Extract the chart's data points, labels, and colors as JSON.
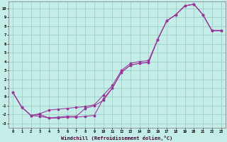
{
  "bg_color": "#c5ede8",
  "grid_color": "#9ecec8",
  "line_color": "#993399",
  "xlim": [
    -0.5,
    23.5
  ],
  "ylim": [
    -3.5,
    10.8
  ],
  "xticks": [
    0,
    1,
    2,
    3,
    4,
    5,
    6,
    7,
    8,
    9,
    10,
    11,
    12,
    13,
    14,
    15,
    16,
    17,
    18,
    19,
    20,
    21,
    22,
    23
  ],
  "yticks": [
    -3,
    -2,
    -1,
    0,
    1,
    2,
    3,
    4,
    5,
    6,
    7,
    8,
    9,
    10
  ],
  "xlabel": "Windchill (Refroidissement éolien,°C)",
  "line1_x": [
    0,
    1,
    2,
    3,
    4,
    5,
    6,
    7,
    8,
    9,
    10,
    11,
    12,
    13,
    14,
    15,
    16,
    17,
    18,
    19,
    20,
    21,
    22,
    23
  ],
  "line1_y": [
    0.5,
    -1.2,
    -2.1,
    -2.2,
    -2.4,
    -2.4,
    -2.3,
    -2.3,
    -2.2,
    -2.1,
    -0.2,
    1.0,
    2.8,
    3.6,
    3.8,
    3.9,
    6.5,
    8.6,
    9.3,
    10.3,
    10.5,
    9.3,
    7.5,
    7.5
  ],
  "line2_x": [
    0,
    1,
    2,
    3,
    4,
    5,
    6,
    7,
    8,
    9,
    10,
    11,
    12,
    13,
    14,
    15,
    16,
    17,
    18,
    19,
    20,
    21,
    22,
    23
  ],
  "line2_y": [
    0.5,
    -1.2,
    -2.1,
    -1.9,
    -1.5,
    -1.4,
    -1.3,
    -1.2,
    -1.1,
    -0.9,
    0.2,
    1.3,
    3.0,
    3.8,
    4.0,
    4.1,
    6.5,
    8.6,
    9.3,
    10.3,
    10.5,
    9.3,
    7.5,
    7.5
  ],
  "line3_x": [
    0,
    1,
    2,
    3,
    4,
    5,
    6,
    7,
    8,
    9,
    10,
    11,
    12,
    13,
    14,
    15,
    16,
    17,
    18,
    19,
    20,
    21,
    22,
    23
  ],
  "line3_y": [
    0.5,
    -1.2,
    -2.1,
    -2.0,
    -2.4,
    -2.3,
    -2.2,
    -2.2,
    -1.3,
    -1.0,
    -0.4,
    1.0,
    2.8,
    3.6,
    3.8,
    3.9,
    6.5,
    8.6,
    9.3,
    10.3,
    10.5,
    9.3,
    7.5,
    7.5
  ]
}
